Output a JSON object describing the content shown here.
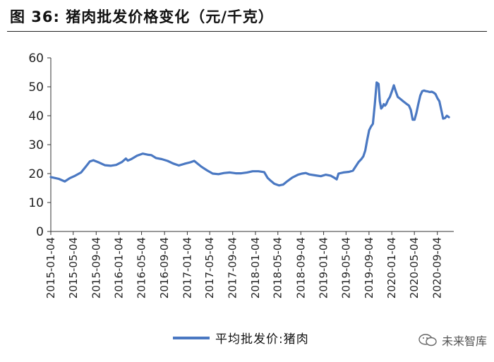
{
  "figure": {
    "title": "图 36:  猪肉批发价格变化（元/千克）",
    "watermark": "未来智库"
  },
  "chart_data": {
    "type": "line",
    "title": "图 36:  猪肉批发价格变化（元/千克）",
    "ylim": [
      0,
      60
    ],
    "yticks": [
      0,
      10,
      20,
      30,
      40,
      50,
      60
    ],
    "xlim": [
      "2015-01-04",
      "2020-12-01"
    ],
    "xticks": [
      "2015-01-04",
      "2015-05-04",
      "2015-09-04",
      "2016-01-04",
      "2016-05-04",
      "2016-09-04",
      "2017-01-04",
      "2017-05-04",
      "2017-09-04",
      "2018-01-04",
      "2018-05-04",
      "2018-09-04",
      "2019-01-04",
      "2019-05-04",
      "2019-09-04",
      "2020-01-04",
      "2020-05-04",
      "2020-09-04"
    ],
    "grid": false,
    "legend_position": "bottom",
    "series": [
      {
        "name": "平均批发价:猪肉",
        "color": "#4a78c2",
        "x": [
          "2015-01-04",
          "2015-02-15",
          "2015-03-20",
          "2015-04-15",
          "2015-05-15",
          "2015-06-15",
          "2015-07-10",
          "2015-08-01",
          "2015-08-20",
          "2015-09-20",
          "2015-10-20",
          "2015-11-20",
          "2015-12-20",
          "2016-01-20",
          "2016-02-10",
          "2016-02-20",
          "2016-03-10",
          "2016-04-10",
          "2016-05-10",
          "2016-06-10",
          "2016-06-25",
          "2016-07-20",
          "2016-08-20",
          "2016-09-20",
          "2016-10-20",
          "2016-11-20",
          "2016-12-20",
          "2017-01-20",
          "2017-02-10",
          "2017-02-25",
          "2017-03-20",
          "2017-04-20",
          "2017-05-20",
          "2017-06-20",
          "2017-07-20",
          "2017-08-20",
          "2017-09-20",
          "2017-10-20",
          "2017-11-20",
          "2017-12-20",
          "2018-01-20",
          "2018-02-20",
          "2018-03-10",
          "2018-03-25",
          "2018-04-15",
          "2018-05-10",
          "2018-06-01",
          "2018-06-20",
          "2018-07-20",
          "2018-08-20",
          "2018-09-10",
          "2018-10-01",
          "2018-10-20",
          "2018-11-20",
          "2018-12-20",
          "2019-01-15",
          "2019-02-10",
          "2019-03-01",
          "2019-03-15",
          "2019-03-25",
          "2019-04-20",
          "2019-05-20",
          "2019-06-10",
          "2019-06-25",
          "2019-07-10",
          "2019-07-25",
          "2019-08-05",
          "2019-08-15",
          "2019-08-25",
          "2019-09-05",
          "2019-09-15",
          "2019-09-25",
          "2019-10-05",
          "2019-10-15",
          "2019-10-25",
          "2019-11-01",
          "2019-11-08",
          "2019-11-15",
          "2019-11-22",
          "2019-11-29",
          "2019-12-05",
          "2019-12-15",
          "2019-12-25",
          "2020-01-05",
          "2020-01-15",
          "2020-01-25",
          "2020-02-05",
          "2020-02-15",
          "2020-02-25",
          "2020-03-05",
          "2020-03-15",
          "2020-03-25",
          "2020-04-05",
          "2020-04-15",
          "2020-04-25",
          "2020-05-05",
          "2020-05-15",
          "2020-05-25",
          "2020-06-05",
          "2020-06-15",
          "2020-06-25",
          "2020-07-05",
          "2020-07-15",
          "2020-07-25",
          "2020-08-05",
          "2020-08-15",
          "2020-08-25",
          "2020-09-05",
          "2020-09-15",
          "2020-09-25",
          "2020-10-05",
          "2020-10-15",
          "2020-10-25",
          "2020-11-05"
        ],
        "y": [
          18.8,
          18.2,
          17.3,
          18.4,
          19.3,
          20.4,
          22.4,
          24.2,
          24.6,
          23.8,
          22.9,
          22.7,
          23.0,
          24.0,
          25.2,
          24.5,
          25.0,
          26.2,
          26.9,
          26.5,
          26.4,
          25.4,
          25.0,
          24.4,
          23.5,
          22.8,
          23.4,
          23.9,
          24.4,
          23.6,
          22.4,
          21.1,
          20.0,
          19.8,
          20.2,
          20.4,
          20.1,
          20.1,
          20.4,
          20.8,
          20.8,
          20.5,
          18.5,
          17.6,
          16.5,
          15.9,
          16.2,
          17.2,
          18.6,
          19.6,
          20.0,
          20.2,
          19.7,
          19.4,
          19.1,
          19.6,
          19.3,
          18.6,
          18.0,
          20.0,
          20.4,
          20.6,
          21.0,
          22.5,
          24.0,
          25.0,
          26.0,
          28.0,
          31.5,
          35.0,
          36.3,
          37.2,
          44.0,
          51.5,
          51.0,
          45.0,
          42.5,
          43.0,
          44.0,
          43.5,
          44.0,
          45.5,
          46.5,
          48.5,
          50.5,
          48.5,
          46.5,
          46.0,
          45.5,
          45.0,
          44.5,
          44.0,
          43.5,
          42.0,
          38.6,
          38.6,
          41.0,
          44.0,
          47.0,
          48.5,
          48.7,
          48.5,
          48.4,
          48.2,
          48.3,
          48.0,
          47.5,
          46.0,
          45.0,
          42.0,
          39.0,
          39.2,
          40.0,
          39.5
        ]
      }
    ]
  }
}
